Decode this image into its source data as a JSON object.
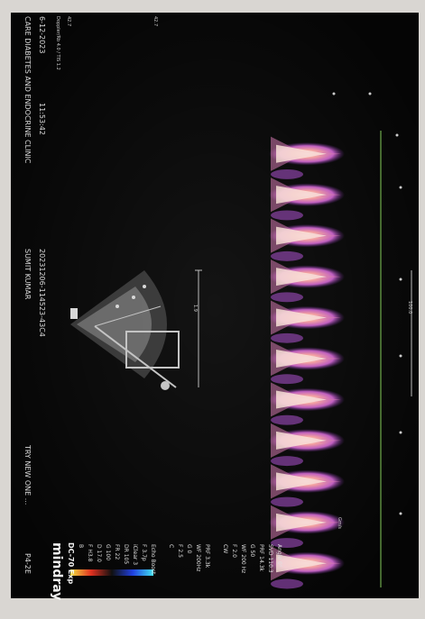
{
  "header": {
    "clinic": "CARE DIABETES AND ENDOCRINE CLINIC",
    "patient": "SUMIT KUMAR",
    "date": "6-12-2023",
    "time": "11:53:42",
    "exam_id": "20231206-114523-43C4",
    "operator": "TRY NEW ONE ...",
    "probe": "P4-2E",
    "status_line": "Doppler/Rb 4.0 / TIS 1.2"
  },
  "device": {
    "brand": "mindray",
    "model": "DC-70 Exp"
  },
  "params": {
    "mode": "B",
    "b_lines": [
      "F H3.8",
      "D 17.0",
      "G 100",
      "FR 22",
      "DR 105",
      "iClear 3",
      "F 3.7p",
      "Echo Boost"
    ],
    "c_mode": "C",
    "c_lines": [
      "F 2.5",
      "G 0",
      "WF 200Hz",
      "PRF 3.3k"
    ],
    "cw_mode": "CW",
    "cw_lines": [
      "F 2.0",
      "WF 200 Hz",
      "G 50",
      "PRF 14.3k",
      "SVD 110.3",
      "Angle 0°"
    ]
  },
  "scale": {
    "colorbar_top": "42.7",
    "colorbar_bottom": "42.7",
    "doppler_unit": "Gm/s",
    "sweep_label": "100.0",
    "depth_label": "1.9"
  },
  "colors": {
    "screen": "#050505",
    "bezel": "#d9d6d2",
    "doppler_core": "#f6e0d4",
    "doppler_mid": "#e490b0",
    "doppler_edge": "#9a3fc0",
    "baseline": "#5a8a3e"
  }
}
